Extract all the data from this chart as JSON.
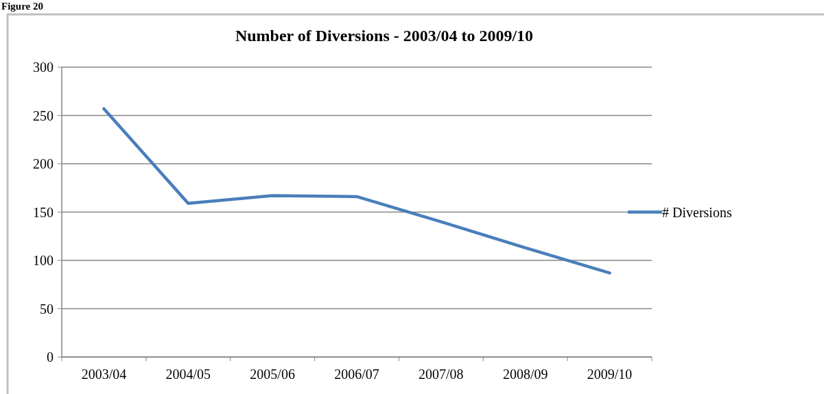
{
  "chart_data": {
    "type": "line",
    "title": "Number of Diversions - 2003/04 to 2009/10",
    "annotations": [
      "Figure 20"
    ],
    "categories": [
      "2003/04",
      "2004/05",
      "2005/06",
      "2006/07",
      "2007/08",
      "2008/09",
      "2009/10"
    ],
    "series": [
      {
        "name": "# Diversions",
        "color": "#4a7ebb",
        "values": [
          257,
          159,
          167,
          166,
          140,
          113,
          87
        ]
      }
    ],
    "ylim": [
      0,
      300
    ],
    "yticks": [
      0,
      50,
      100,
      150,
      200,
      250,
      300
    ],
    "grid": "y",
    "legend": "right",
    "marker": "none",
    "line_style": "solid"
  }
}
